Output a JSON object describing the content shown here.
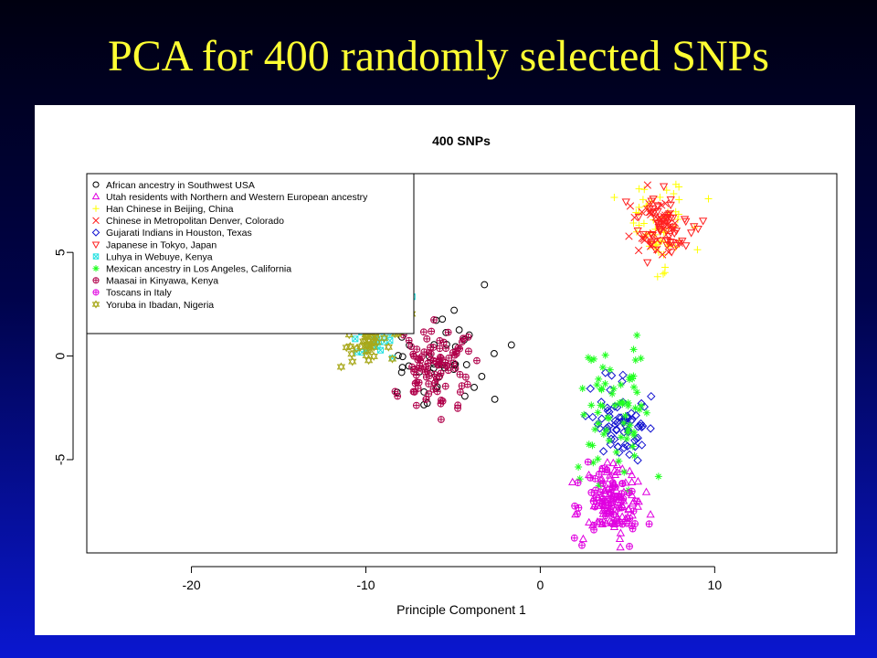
{
  "slide": {
    "title": "PCA for 400 randomly selected SNPs"
  },
  "chart_data": {
    "type": "scatter",
    "title": "400 SNPs",
    "xlabel": "Principle Component 1",
    "ylabel": "",
    "xlim": [
      -26,
      17
    ],
    "ylim": [
      -9.5,
      8.8
    ],
    "x_ticks": [
      -20,
      -10,
      0,
      10
    ],
    "y_ticks": [
      -5,
      0,
      5
    ],
    "grid": false,
    "legend_position": "top-left",
    "points_note": "points are synthesized from approximate cluster centers and spreads",
    "series": [
      {
        "name": "African ancestry in Southwest USA",
        "marker": "circle",
        "color": "#000000",
        "center": [
          -6.0,
          -0.2
        ],
        "spread": [
          1.8,
          1.5
        ],
        "n": 45
      },
      {
        "name": "Utah residents with Northern and Western European ancestry",
        "marker": "triangle-up",
        "color": "#e000e0",
        "center": [
          4.2,
          -6.9
        ],
        "spread": [
          0.9,
          0.9
        ],
        "n": 80
      },
      {
        "name": "Han Chinese in Beijing, China",
        "marker": "plus",
        "color": "#ffff00",
        "center": [
          6.7,
          6.3
        ],
        "spread": [
          1.0,
          1.0
        ],
        "n": 60
      },
      {
        "name": "Chinese in Metropolitan Denver, Colorado",
        "marker": "cross",
        "color": "#ff2020",
        "center": [
          6.6,
          6.4
        ],
        "spread": [
          0.7,
          0.8
        ],
        "n": 45
      },
      {
        "name": "Gujarati Indians in Houston, Texas",
        "marker": "diamond",
        "color": "#1010d0",
        "center": [
          4.6,
          -3.3
        ],
        "spread": [
          0.8,
          0.9
        ],
        "n": 70
      },
      {
        "name": "Japanese in Tokyo, Japan",
        "marker": "triangle-down",
        "color": "#ff2020",
        "center": [
          7.0,
          6.1
        ],
        "spread": [
          0.8,
          0.8
        ],
        "n": 60
      },
      {
        "name": "Luhya in Webuye, Kenya",
        "marker": "square-x",
        "color": "#20e0e0",
        "center": [
          -9.4,
          1.7
        ],
        "spread": [
          0.9,
          0.9
        ],
        "n": 70
      },
      {
        "name": "Mexican ancestry in Los Angeles, California",
        "marker": "asterisk",
        "color": "#20ff20",
        "center": [
          4.4,
          -2.6
        ],
        "spread": [
          1.0,
          1.6
        ],
        "n": 70
      },
      {
        "name": "Maasai in Kinyawa, Kenya",
        "marker": "circle-plus",
        "color": "#b0004a",
        "center": [
          -6.2,
          -0.4
        ],
        "spread": [
          1.1,
          1.1
        ],
        "n": 100
      },
      {
        "name": "Toscans in Italy",
        "marker": "circle-plus",
        "color": "#e000e0",
        "center": [
          4.0,
          -7.2
        ],
        "spread": [
          0.9,
          0.8
        ],
        "n": 75
      },
      {
        "name": "Yoruba in Ibadan, Nigeria",
        "marker": "star-triangles",
        "color": "#a8a81a",
        "center": [
          -9.7,
          1.6
        ],
        "spread": [
          0.8,
          0.9
        ],
        "n": 110
      }
    ]
  }
}
